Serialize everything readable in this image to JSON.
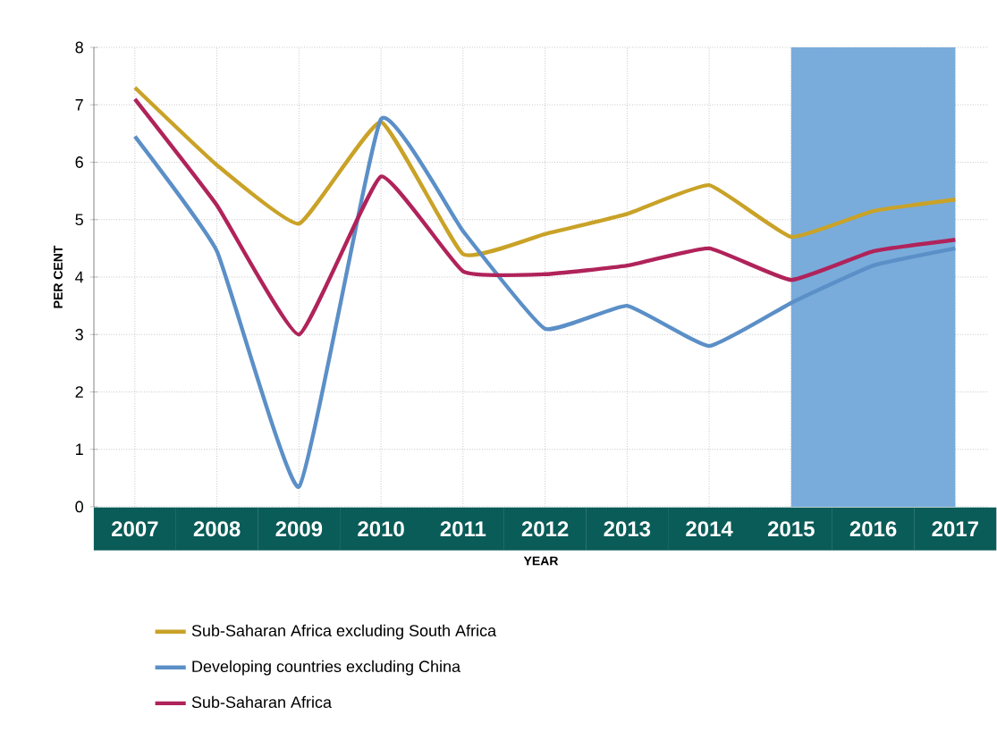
{
  "chart_data": {
    "type": "line",
    "xlabel": "YEAR",
    "ylabel": "PER CENT",
    "x": [
      2007,
      2008,
      2009,
      2010,
      2011,
      2012,
      2013,
      2014,
      2015,
      2016,
      2017
    ],
    "series": [
      {
        "name": "Sub-Saharan Africa excluding South Africa",
        "color": "#c9a227",
        "values": [
          7.3,
          5.95,
          4.93,
          6.7,
          4.4,
          4.75,
          5.1,
          5.6,
          4.7,
          5.15,
          5.35
        ]
      },
      {
        "name": "Developing countries excluding China",
        "color": "#5b8fc7",
        "values": [
          6.45,
          4.45,
          0.35,
          6.75,
          4.8,
          3.1,
          3.5,
          2.8,
          3.55,
          4.2,
          4.5
        ]
      },
      {
        "name": "Sub-Saharan Africa",
        "color": "#b0235a",
        "values": [
          7.1,
          5.25,
          3.0,
          5.75,
          4.1,
          4.05,
          4.2,
          4.5,
          3.95,
          4.45,
          4.65
        ]
      }
    ],
    "xlim": [
      2006.5,
      2017.4
    ],
    "ylim": [
      0,
      8
    ],
    "xticks": [
      2007,
      2008,
      2009,
      2010,
      2011,
      2012,
      2013,
      2014,
      2015,
      2016,
      2017
    ],
    "yticks": [
      0,
      1,
      2,
      3,
      4,
      5,
      6,
      7,
      8
    ],
    "bands": [
      {
        "axis": "x",
        "from": 2015,
        "to": 2017,
        "color": "#79acdb"
      }
    ],
    "grid": true,
    "legend": "bottom",
    "marker": "none",
    "line_style": "solid"
  }
}
